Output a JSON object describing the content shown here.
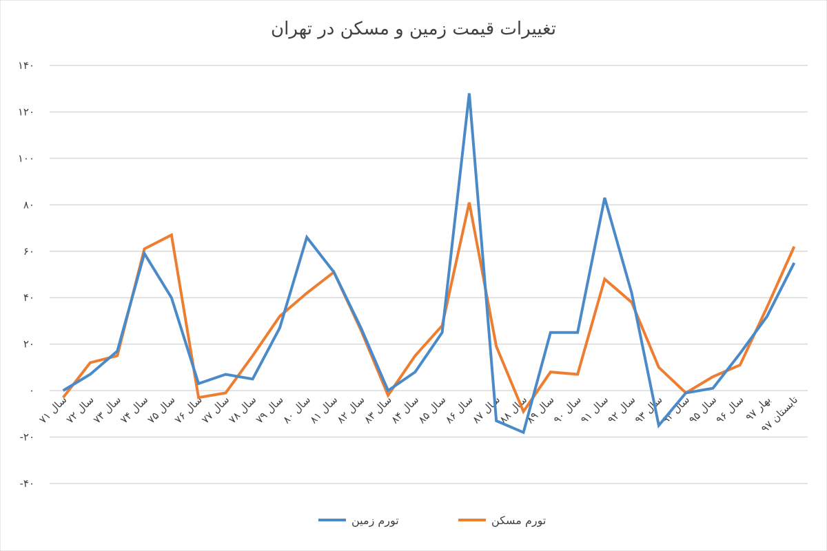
{
  "chart_data": {
    "type": "line",
    "title": "تغییرات قیمت زمین و مسکن در تهران",
    "xlabel": "",
    "ylabel": "",
    "ylim": [
      -40,
      140
    ],
    "yticks": [
      -40,
      -20,
      0,
      20,
      40,
      60,
      80,
      100,
      120,
      140
    ],
    "ytick_labels": [
      "-۴۰",
      "-۲۰",
      "۰",
      "۲۰",
      "۴۰",
      "۶۰",
      "۸۰",
      "۱۰۰",
      "۱۲۰",
      "۱۴۰"
    ],
    "grid": true,
    "legend_position": "bottom",
    "categories": [
      "سال ۷۱",
      "سال ۷۲",
      "سال ۷۳",
      "سال ۷۴",
      "سال ۷۵",
      "سال ۷۶",
      "سال ۷۷",
      "سال ۷۸",
      "سال ۷۹",
      "سال ۸۰",
      "سال ۸۱",
      "سال ۸۲",
      "سال ۸۳",
      "سال ۸۴",
      "سال ۸۵",
      "سال ۸۶",
      "سال ۸۷",
      "سال ۸۸",
      "سال ۸۹",
      "سال ۹۰",
      "سال ۹۱",
      "سال ۹۲",
      "سال ۹۳",
      "سال ۹۴",
      "سال ۹۵",
      "سال ۹۶",
      "بهار ۹۷",
      "تابستان ۹۷"
    ],
    "series": [
      {
        "name": "تورم زمین",
        "color": "#4a8ac9",
        "values": [
          0,
          7,
          17,
          59,
          40,
          3,
          7,
          5,
          27,
          66,
          51,
          27,
          0,
          8,
          25,
          128,
          -13,
          -18,
          25,
          25,
          83,
          42,
          -15,
          -1,
          1,
          16,
          32,
          55
        ]
      },
      {
        "name": "تورم مسکن",
        "color": "#ed7d31",
        "values": [
          -3,
          12,
          15,
          61,
          67,
          -3,
          -1,
          15,
          32,
          42,
          51,
          26,
          -2,
          15,
          28,
          81,
          19,
          -9,
          8,
          7,
          48,
          38,
          10,
          -1,
          6,
          11,
          36,
          62
        ]
      }
    ]
  }
}
